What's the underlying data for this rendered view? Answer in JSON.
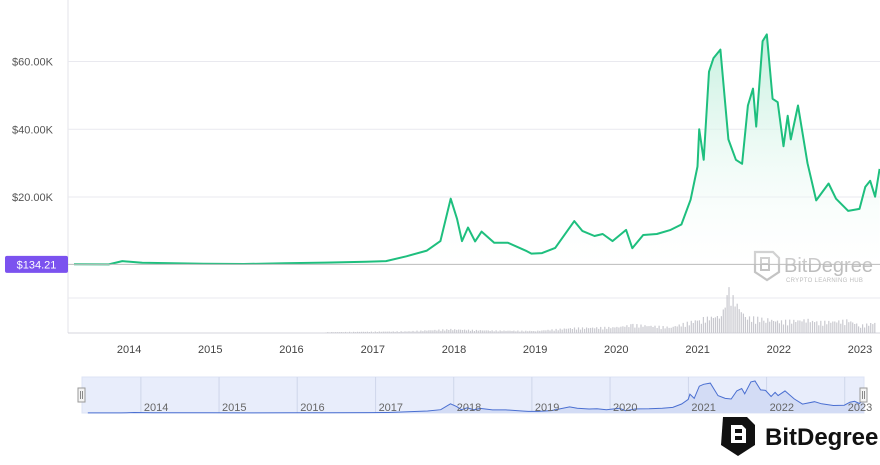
{
  "chart_data": {
    "type": "area",
    "y_ticks": [
      "$60.00K",
      "$40.00K",
      "$20.00K"
    ],
    "y_tick_values": [
      60000,
      40000,
      20000
    ],
    "x_ticks": [
      "2014",
      "2015",
      "2016",
      "2017",
      "2018",
      "2019",
      "2020",
      "2021",
      "2022",
      "2023"
    ],
    "ylim": [
      0,
      70000
    ],
    "xlim": [
      "2013-04-01",
      "2023-04-01"
    ],
    "grid": true,
    "line_color": "#1ebf7e",
    "fill_color": "#d8f3e6",
    "series": [
      {
        "x": [
          "2013-04-28",
          "2013-10-01",
          "2013-12-01",
          "2014-03-01",
          "2014-12-01",
          "2015-06-01",
          "2015-12-01",
          "2016-06-01",
          "2016-12-01",
          "2017-03-01",
          "2017-06-01",
          "2017-09-01",
          "2017-11-01",
          "2017-12-17",
          "2018-01-15",
          "2018-02-06",
          "2018-03-05",
          "2018-04-06",
          "2018-05-05",
          "2018-07-01",
          "2018-09-01",
          "2018-11-25",
          "2018-12-15",
          "2019-02-01",
          "2019-04-01",
          "2019-06-26",
          "2019-08-01",
          "2019-09-25",
          "2019-11-01",
          "2019-12-15",
          "2020-02-14",
          "2020-03-13",
          "2020-05-01",
          "2020-07-01",
          "2020-09-01",
          "2020-10-20",
          "2020-11-30",
          "2020-12-31",
          "2021-01-08",
          "2021-01-28",
          "2021-02-21",
          "2021-03-13",
          "2021-04-13",
          "2021-05-19",
          "2021-06-22",
          "2021-07-20",
          "2021-08-15",
          "2021-09-07",
          "2021-09-21",
          "2021-10-20",
          "2021-11-08",
          "2021-12-04",
          "2021-12-27",
          "2022-01-22",
          "2022-02-10",
          "2022-02-24",
          "2022-03-28",
          "2022-05-10",
          "2022-06-18",
          "2022-08-13",
          "2022-09-15",
          "2022-11-09",
          "2022-12-30",
          "2023-01-25",
          "2023-02-16",
          "2023-03-10",
          "2023-03-30"
        ],
        "y": [
          135,
          130,
          1100,
          600,
          320,
          250,
          430,
          650,
          900,
          1100,
          2500,
          4200,
          7000,
          19500,
          13500,
          7000,
          11000,
          6900,
          9800,
          6500,
          6500,
          4000,
          3300,
          3450,
          5000,
          12900,
          10000,
          8500,
          9100,
          7000,
          10300,
          4900,
          8800,
          9100,
          10300,
          11900,
          19200,
          29000,
          40000,
          31000,
          57000,
          61000,
          63500,
          37000,
          31000,
          29800,
          47000,
          52000,
          40800,
          66000,
          68000,
          49000,
          48000,
          35000,
          44000,
          37000,
          47000,
          30000,
          19000,
          24000,
          19500,
          15900,
          16500,
          23000,
          24800,
          20100,
          28300
        ]
      }
    ],
    "volume_series": {
      "x": [
        "2016-06-01",
        "2017-06-01",
        "2017-12-15",
        "2018-06-01",
        "2019-01-01",
        "2019-06-15",
        "2020-01-01",
        "2020-03-13",
        "2020-09-01",
        "2021-01-15",
        "2021-04-15",
        "2021-05-19",
        "2021-08-01",
        "2021-11-01",
        "2022-01-01",
        "2022-05-10",
        "2022-06-18",
        "2022-11-09",
        "2023-01-01",
        "2023-03-15"
      ],
      "y": [
        2,
        4,
        9,
        6,
        5,
        12,
        14,
        20,
        14,
        34,
        42,
        100,
        38,
        34,
        28,
        32,
        26,
        30,
        18,
        26
      ]
    },
    "cursor_value": "$134.21",
    "cursor_y": 134.21
  },
  "navigator": {
    "x_ticks": [
      "2014",
      "2015",
      "2016",
      "2017",
      "2018",
      "2019",
      "2020",
      "2021",
      "2022",
      "2023"
    ]
  },
  "watermark": {
    "name": "BitDegree",
    "tagline": "CRYPTO LEARNING HUB"
  },
  "brand": {
    "name": "BitDegree"
  }
}
